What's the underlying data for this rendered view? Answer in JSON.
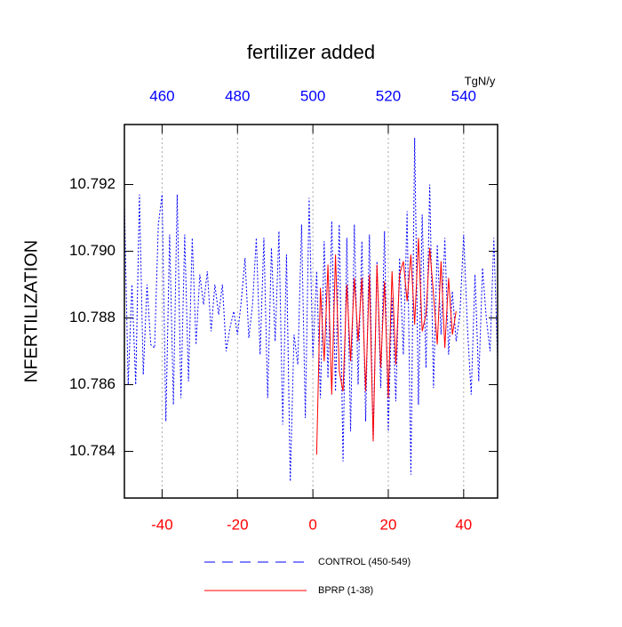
{
  "chart_data": {
    "type": "line",
    "title": "fertilizer added",
    "ylabel": "NFERTILIZATION",
    "x2label": "TgN/y",
    "xlim": [
      -50,
      49
    ],
    "xticks": [
      -40,
      -20,
      0,
      20,
      40
    ],
    "xtick_color": "#ff0000",
    "x2lim": [
      450,
      549
    ],
    "x2ticks": [
      460,
      480,
      500,
      520,
      540
    ],
    "x2tick_color": "#0000ff",
    "ylim": [
      10.7826,
      10.7938
    ],
    "yticks": [
      10.784,
      10.786,
      10.788,
      {
        "value": 10.79,
        "label": "10.790"
      },
      10.792
    ],
    "grid": true,
    "series": [
      {
        "name": "CONTROL (450-549)",
        "color": "#0000ff",
        "dashed": true,
        "x": [
          -50,
          -49,
          -48,
          -47,
          -46,
          -45,
          -44,
          -43,
          -42,
          -41,
          -40,
          -39,
          -38,
          -37,
          -36,
          -35,
          -34,
          -33,
          -32,
          -31,
          -30,
          -29,
          -28,
          -27,
          -26,
          -25,
          -24,
          -23,
          -22,
          -21,
          -20,
          -19,
          -18,
          -17,
          -16,
          -15,
          -14,
          -13,
          -12,
          -11,
          -10,
          -9,
          -8,
          -7,
          -6,
          -5,
          -4,
          -3,
          -2,
          -1,
          0,
          1,
          2,
          3,
          4,
          5,
          6,
          7,
          8,
          9,
          10,
          11,
          12,
          13,
          14,
          15,
          16,
          17,
          18,
          19,
          20,
          21,
          22,
          23,
          24,
          25,
          26,
          27,
          28,
          29,
          30,
          31,
          32,
          33,
          34,
          35,
          36,
          37,
          38,
          39,
          40,
          41,
          42,
          43,
          44,
          45,
          46,
          47,
          48,
          49
        ],
        "values": [
          10.7915,
          10.786,
          10.789,
          10.786,
          10.7917,
          10.7863,
          10.789,
          10.7872,
          10.7871,
          10.7908,
          10.7917,
          10.7849,
          10.7905,
          10.7854,
          10.7917,
          10.7856,
          10.7905,
          10.7861,
          10.7904,
          10.7872,
          10.7893,
          10.7884,
          10.7894,
          10.7876,
          10.789,
          10.7881,
          10.789,
          10.787,
          10.7877,
          10.7882,
          10.7875,
          10.7885,
          10.7898,
          10.7874,
          10.7884,
          10.7904,
          10.7869,
          10.7904,
          10.7856,
          10.7901,
          10.7873,
          10.7906,
          10.7848,
          10.7899,
          10.7831,
          10.7875,
          10.7866,
          10.7908,
          10.785,
          10.7916,
          10.7868,
          10.7894,
          10.7856,
          10.7903,
          10.7862,
          10.7909,
          10.7858,
          10.7908,
          10.7837,
          10.7904,
          10.7846,
          10.7908,
          10.786,
          10.7903,
          10.7849,
          10.7905,
          10.7843,
          10.7897,
          10.7859,
          10.7906,
          10.7846,
          10.7886,
          10.7855,
          10.7898,
          10.7869,
          10.7912,
          10.7833,
          10.7934,
          10.7854,
          10.7911,
          10.7865,
          10.792,
          10.7859,
          10.7902,
          10.7875,
          10.7904,
          10.7869,
          10.7888,
          10.7873,
          10.7881,
          10.7905,
          10.7877,
          10.7857,
          10.7893,
          10.7861,
          10.7895,
          10.788,
          10.787,
          10.7904,
          10.7867
        ]
      },
      {
        "name": "BPRP (1-38)",
        "color": "#ff0000",
        "dashed": false,
        "x": [
          1,
          2,
          3,
          4,
          5,
          6,
          7,
          8,
          9,
          10,
          11,
          12,
          13,
          14,
          15,
          16,
          17,
          18,
          19,
          20,
          21,
          22,
          23,
          24,
          25,
          26,
          27,
          28,
          29,
          30,
          31,
          32,
          33,
          34,
          35,
          36,
          37,
          38
        ],
        "values": [
          10.7839,
          10.7889,
          10.7867,
          10.7896,
          10.7857,
          10.7899,
          10.7864,
          10.7858,
          10.789,
          10.7867,
          10.7892,
          10.7873,
          10.7892,
          10.7858,
          10.7893,
          10.7843,
          10.7896,
          10.7865,
          10.7891,
          10.7856,
          10.7894,
          10.7866,
          10.7893,
          10.7897,
          10.7885,
          10.7899,
          10.7878,
          10.7904,
          10.7876,
          10.7881,
          10.7901,
          10.7887,
          10.7872,
          10.7897,
          10.7871,
          10.7892,
          10.7875,
          10.7882
        ]
      }
    ]
  }
}
